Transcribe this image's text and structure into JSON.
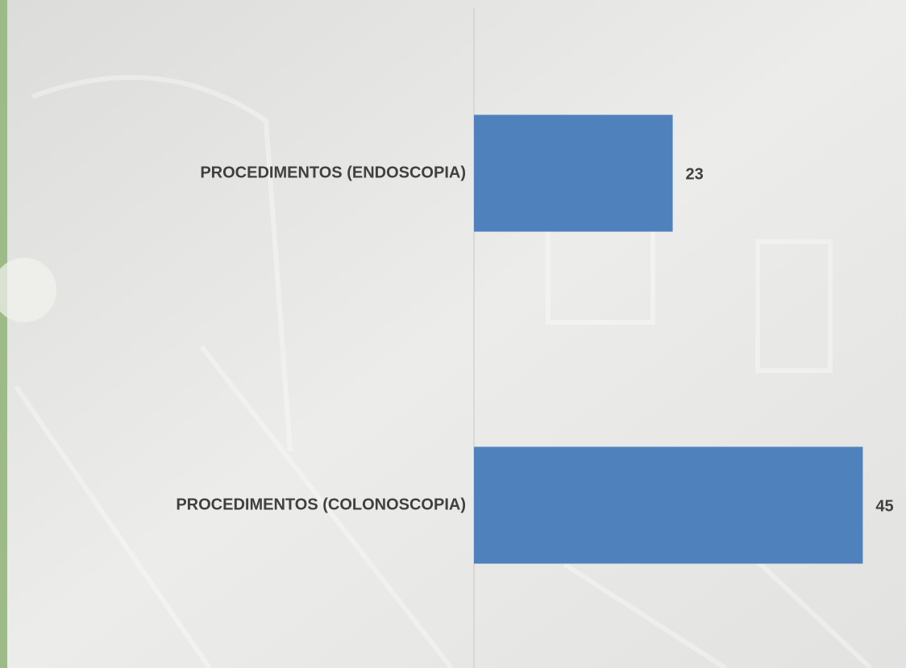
{
  "chart_data": {
    "type": "bar",
    "orientation": "horizontal",
    "categories": [
      "PROCEDIMENTOS (ENDOSCOPIA)",
      "PROCEDIMENTOS (COLONOSCOPIA)"
    ],
    "values": [
      23,
      45
    ],
    "color": "#4f81bd",
    "xlim": [
      0,
      50
    ]
  }
}
